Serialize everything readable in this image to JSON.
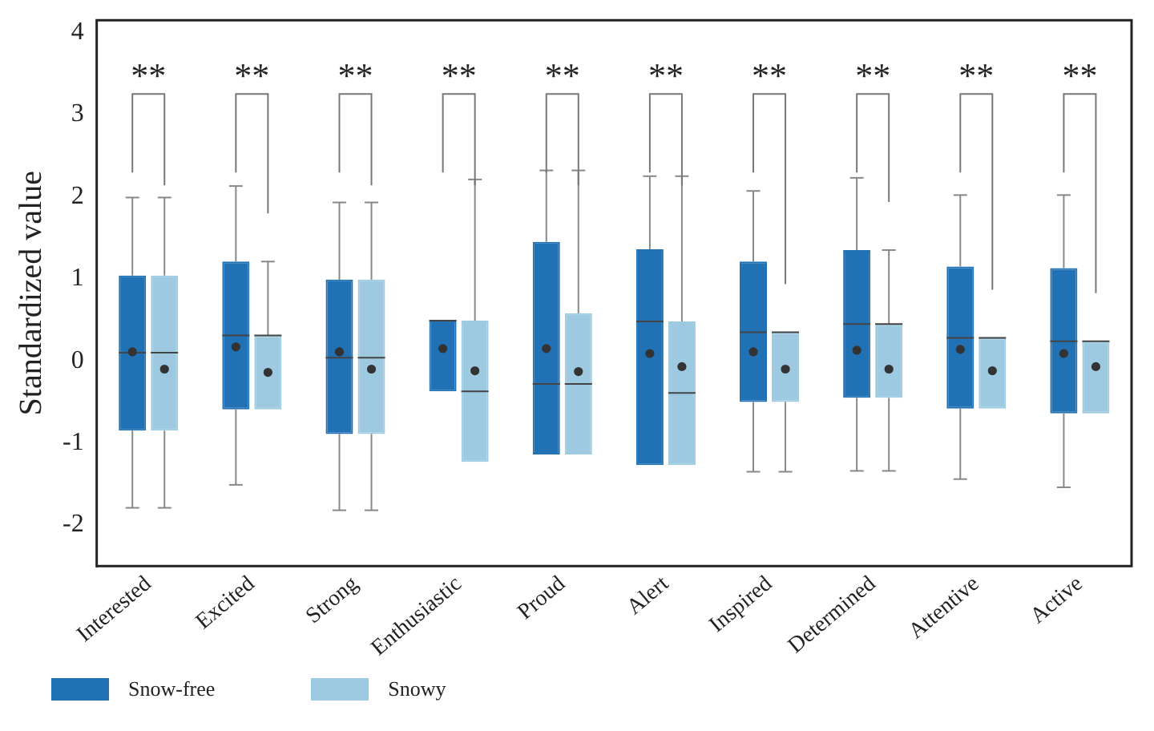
{
  "chart_data": {
    "type": "box",
    "ylabel": "Standardized value",
    "categories": [
      "Interested",
      "Excited",
      "Strong",
      "Enthusiastic",
      "Proud",
      "Alert",
      "Inspired",
      "Determined",
      "Attentive",
      "Active"
    ],
    "ylim": [
      -2.5,
      4.15
    ],
    "yticks": [
      -2,
      -1,
      0,
      1,
      2,
      3,
      4
    ],
    "grid": false,
    "legend": "bottom left",
    "series": [
      {
        "name": "Snow-free",
        "color": "#2171b5",
        "boxes": [
          {
            "low": -1.79,
            "q1": -0.85,
            "median": 0.1,
            "q3": 1.04,
            "high": 1.99,
            "mean": 0.11
          },
          {
            "low": -1.51,
            "q1": -0.59,
            "median": 0.31,
            "q3": 1.21,
            "high": 2.13,
            "mean": 0.17
          },
          {
            "low": -1.82,
            "q1": -0.89,
            "median": 0.04,
            "q3": 0.99,
            "high": 1.93,
            "mean": 0.11
          },
          {
            "low": -0.37,
            "q1": -0.37,
            "median": 0.49,
            "q3": 0.49,
            "high": 0.49,
            "mean": 0.15
          },
          {
            "low": -1.14,
            "q1": -1.14,
            "median": -0.28,
            "q3": 1.45,
            "high": 2.32,
            "mean": 0.15
          },
          {
            "low": -1.27,
            "q1": -1.27,
            "median": 0.48,
            "q3": 1.36,
            "high": 2.25,
            "mean": 0.09
          },
          {
            "low": -1.35,
            "q1": -0.5,
            "median": 0.35,
            "q3": 1.21,
            "high": 2.07,
            "mean": 0.11
          },
          {
            "low": -1.34,
            "q1": -0.45,
            "median": 0.45,
            "q3": 1.35,
            "high": 2.23,
            "mean": 0.13
          },
          {
            "low": -1.44,
            "q1": -0.58,
            "median": 0.28,
            "q3": 1.15,
            "high": 2.02,
            "mean": 0.14
          },
          {
            "low": -1.54,
            "q1": -0.64,
            "median": 0.24,
            "q3": 1.13,
            "high": 2.02,
            "mean": 0.09
          }
        ]
      },
      {
        "name": "Snowy",
        "color": "#9ecae1",
        "boxes": [
          {
            "low": -1.79,
            "q1": -0.85,
            "median": 0.1,
            "q3": 1.04,
            "high": 1.99,
            "mean": -0.1
          },
          {
            "low": -0.59,
            "q1": -0.59,
            "median": 0.31,
            "q3": 0.31,
            "high": 1.21,
            "mean": -0.14
          },
          {
            "low": -1.82,
            "q1": -0.89,
            "median": 0.04,
            "q3": 0.99,
            "high": 1.93,
            "mean": -0.1
          },
          {
            "low": -1.23,
            "q1": -1.23,
            "median": -0.37,
            "q3": 0.49,
            "high": 2.21,
            "mean": -0.12
          },
          {
            "low": -1.14,
            "q1": -1.14,
            "median": -0.28,
            "q3": 0.58,
            "high": 2.32,
            "mean": -0.13
          },
          {
            "low": -1.27,
            "q1": -1.27,
            "median": -0.39,
            "q3": 0.48,
            "high": 2.25,
            "mean": -0.07
          },
          {
            "low": -1.35,
            "q1": -0.5,
            "median": 0.35,
            "q3": 0.35,
            "high": 0.35,
            "mean": -0.1
          },
          {
            "low": -1.34,
            "q1": -0.45,
            "median": 0.45,
            "q3": 0.45,
            "high": 1.35,
            "mean": -0.1
          },
          {
            "low": -0.58,
            "q1": -0.58,
            "median": 0.28,
            "q3": 0.28,
            "high": 0.28,
            "mean": -0.12
          },
          {
            "low": -0.64,
            "q1": -0.64,
            "median": 0.24,
            "q3": 0.24,
            "high": 0.24,
            "mean": -0.07
          }
        ]
      }
    ],
    "annotations": [
      "**",
      "**",
      "**",
      "**",
      "**",
      "**",
      "**",
      "**",
      "**",
      "**"
    ]
  }
}
